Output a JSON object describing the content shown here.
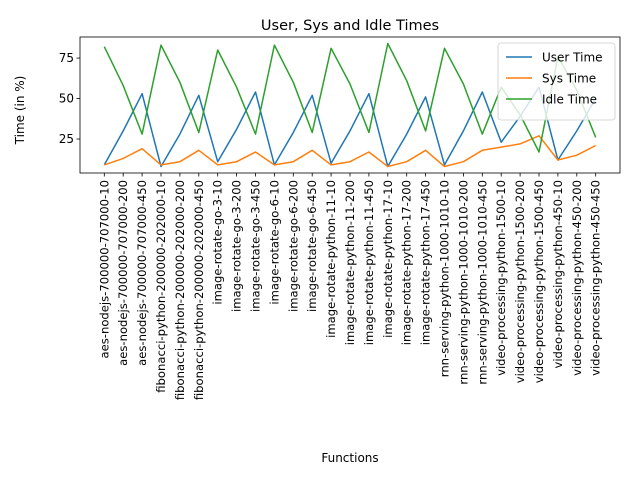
{
  "chart_data": {
    "type": "line",
    "title": "User, Sys and Idle Times",
    "xlabel": "Functions",
    "ylabel": "Time (in %)",
    "ylim": [
      4,
      88
    ],
    "yticks": [
      25,
      50,
      75
    ],
    "grid": false,
    "legend_position": "top-right",
    "categories": [
      "aes-nodejs-700000-707000-10",
      "aes-nodejs-700000-707000-200",
      "aes-nodejs-700000-707000-450",
      "fibonacci-python-200000-202000-10",
      "fibonacci-python-200000-202000-200",
      "fibonacci-python-200000-202000-450",
      "image-rotate-go-3-10",
      "image-rotate-go-3-200",
      "image-rotate-go-3-450",
      "image-rotate-go-6-10",
      "image-rotate-go-6-200",
      "image-rotate-go-6-450",
      "image-rotate-python-11-10",
      "image-rotate-python-11-200",
      "image-rotate-python-11-450",
      "image-rotate-python-17-10",
      "image-rotate-python-17-200",
      "image-rotate-python-17-450",
      "rnn-serving-python-1000-1010-10",
      "rnn-serving-python-1000-1010-200",
      "rnn-serving-python-1000-1010-450",
      "video-processing-python-1500-10",
      "video-processing-python-1500-200",
      "video-processing-python-1500-450",
      "video-processing-python-450-10",
      "video-processing-python-450-200",
      "video-processing-python-450-450"
    ],
    "series": [
      {
        "name": "User Time",
        "color": "#1f77b4",
        "values": [
          9,
          30,
          53,
          8,
          28,
          52,
          11,
          31,
          54,
          9,
          29,
          52,
          10,
          30,
          53,
          8,
          28,
          51,
          9,
          30,
          54,
          23,
          39,
          57,
          12,
          30,
          50
        ]
      },
      {
        "name": "Sys Time",
        "color": "#ff7f0e",
        "values": [
          9,
          13,
          19,
          9,
          11,
          18,
          9,
          11,
          17,
          9,
          11,
          18,
          9,
          11,
          17,
          8,
          11,
          18,
          8,
          11,
          18,
          20,
          22,
          27,
          12,
          15,
          21
        ]
      },
      {
        "name": "Idle Time",
        "color": "#2ca02c",
        "values": [
          82,
          58,
          28,
          83,
          60,
          29,
          80,
          57,
          28,
          83,
          60,
          29,
          81,
          59,
          29,
          84,
          61,
          30,
          81,
          59,
          28,
          57,
          40,
          17,
          76,
          55,
          26
        ]
      }
    ]
  }
}
